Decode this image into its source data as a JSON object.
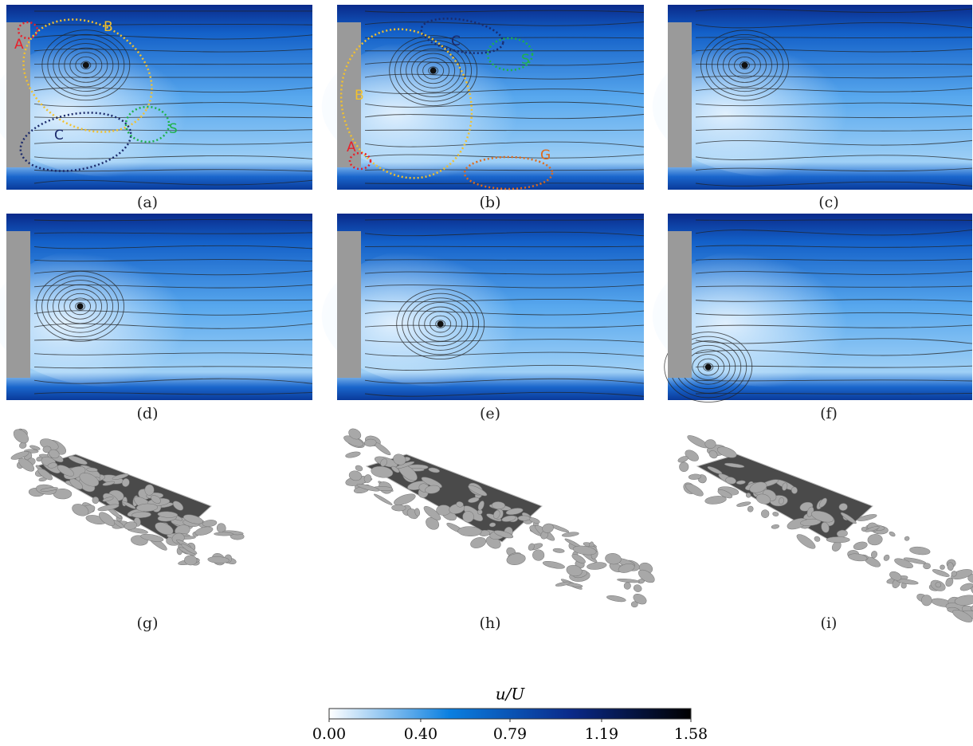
{
  "panels": [
    {
      "label": "(a)",
      "annotations": [
        {
          "text": "A",
          "color": "#e8202a"
        },
        {
          "text": "B",
          "color": "#f2c12e"
        },
        {
          "text": "C",
          "color": "#1b2a6b"
        },
        {
          "text": "S",
          "color": "#1fb24a"
        }
      ]
    },
    {
      "label": "(b)",
      "annotations": [
        {
          "text": "C",
          "color": "#1b2a6b"
        },
        {
          "text": "S",
          "color": "#1fb24a"
        },
        {
          "text": "B",
          "color": "#f2c12e"
        },
        {
          "text": "A",
          "color": "#e8202a"
        },
        {
          "text": "G",
          "color": "#e06a1a"
        }
      ]
    },
    {
      "label": "(c)"
    },
    {
      "label": "(d)"
    },
    {
      "label": "(e)"
    },
    {
      "label": "(f)"
    },
    {
      "label": "(g)"
    },
    {
      "label": "(h)"
    },
    {
      "label": "(i)"
    }
  ],
  "colorbar": {
    "label": "u/U",
    "lim": [
      0,
      1.58
    ],
    "ticks": [
      {
        "value": 0,
        "label": "0.00"
      },
      {
        "value": 0.4,
        "label": "0.40"
      },
      0.79,
      1.19,
      1.58
    ],
    "colors": [
      "#ffffff",
      "#0a7fe0",
      "#0a2a8a",
      "#000000"
    ]
  }
}
